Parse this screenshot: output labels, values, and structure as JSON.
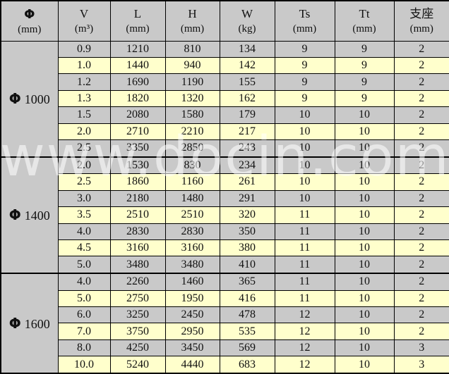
{
  "watermark": {
    "text": "www.docin.com"
  },
  "colors": {
    "row_gray": "#c9c9c9",
    "row_yellow": "#ffffcc",
    "border": "#000000",
    "text": "#111111",
    "watermark": "rgba(255,255,255,0.55)"
  },
  "table": {
    "columns": [
      {
        "symbol": "Φ",
        "unit": "(mm)"
      },
      {
        "symbol": "V",
        "unit": "(m³)"
      },
      {
        "symbol": "L",
        "unit": "(mm)"
      },
      {
        "symbol": "H",
        "unit": "(mm)"
      },
      {
        "symbol": "W",
        "unit": "(kg)"
      },
      {
        "symbol": "Ts",
        "unit": "(mm)"
      },
      {
        "symbol": "Tt",
        "unit": "(mm)"
      },
      {
        "symbol": "支座",
        "unit": "(mm)"
      }
    ],
    "groups": [
      {
        "diameter_symbol": "Φ",
        "diameter": "1000",
        "rows": [
          [
            "0.9",
            "1210",
            "810",
            "134",
            "9",
            "9",
            "2"
          ],
          [
            "1.0",
            "1440",
            "940",
            "142",
            "9",
            "9",
            "2"
          ],
          [
            "1.2",
            "1690",
            "1190",
            "155",
            "9",
            "9",
            "2"
          ],
          [
            "1.3",
            "1820",
            "1320",
            "162",
            "9",
            "9",
            "2"
          ],
          [
            "1.5",
            "2080",
            "1580",
            "179",
            "10",
            "10",
            "2"
          ],
          [
            "2.0",
            "2710",
            "2210",
            "217",
            "10",
            "10",
            "2"
          ],
          [
            "2.5",
            "3350",
            "2850",
            "243",
            "10",
            "10",
            "2"
          ]
        ]
      },
      {
        "diameter_symbol": "Φ",
        "diameter": "1400",
        "rows": [
          [
            "2.0",
            "1530",
            "830",
            "234",
            "10",
            "10",
            "2"
          ],
          [
            "2.5",
            "1860",
            "1160",
            "261",
            "10",
            "10",
            "2"
          ],
          [
            "3.0",
            "2180",
            "1480",
            "291",
            "10",
            "10",
            "2"
          ],
          [
            "3.5",
            "2510",
            "2510",
            "320",
            "11",
            "10",
            "2"
          ],
          [
            "4.0",
            "2830",
            "2830",
            "350",
            "11",
            "10",
            "2"
          ],
          [
            "4.5",
            "3160",
            "3160",
            "380",
            "11",
            "10",
            "2"
          ],
          [
            "5.0",
            "3480",
            "3480",
            "410",
            "11",
            "10",
            "2"
          ]
        ]
      },
      {
        "diameter_symbol": "Φ",
        "diameter": "1600",
        "rows": [
          [
            "4.0",
            "2260",
            "1460",
            "365",
            "11",
            "10",
            "2"
          ],
          [
            "5.0",
            "2750",
            "1950",
            "416",
            "11",
            "10",
            "2"
          ],
          [
            "6.0",
            "3250",
            "2450",
            "478",
            "12",
            "10",
            "2"
          ],
          [
            "7.0",
            "3750",
            "2950",
            "535",
            "12",
            "10",
            "2"
          ],
          [
            "8.0",
            "4250",
            "3450",
            "569",
            "12",
            "10",
            "3"
          ],
          [
            "10.0",
            "5240",
            "4440",
            "683",
            "12",
            "10",
            "3"
          ]
        ]
      }
    ]
  }
}
